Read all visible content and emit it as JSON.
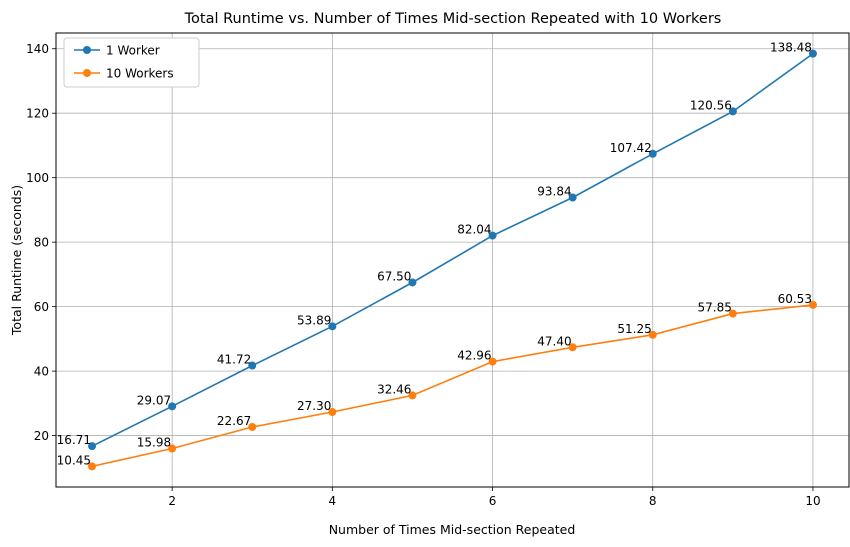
{
  "chart_data": {
    "type": "line",
    "title": "Total Runtime vs. Number of Times Mid-section Repeated with 10 Workers",
    "xlabel": "Number of Times Mid-section Repeated",
    "ylabel": "Total Runtime (seconds)",
    "xlim": [
      0.55,
      10.45
    ],
    "ylim": [
      4.05,
      144.88
    ],
    "xticks": [
      2,
      4,
      6,
      8,
      10
    ],
    "yticks": [
      20,
      40,
      60,
      80,
      100,
      120,
      140
    ],
    "grid": true,
    "legend_position": "top-left",
    "x": [
      1,
      2,
      3,
      4,
      5,
      6,
      7,
      8,
      9,
      10
    ],
    "series": [
      {
        "name": "1 Worker",
        "color": "#1f77b4",
        "values": [
          16.71,
          29.07,
          41.72,
          53.89,
          67.5,
          82.04,
          93.84,
          107.42,
          120.56,
          138.48
        ],
        "labels": [
          "16.71",
          "29.07",
          "41.72",
          "53.89",
          "67.50",
          "82.04",
          "93.84",
          "107.42",
          "120.56",
          "138.48"
        ]
      },
      {
        "name": "10 Workers",
        "color": "#ff7f0e",
        "values": [
          10.45,
          15.98,
          22.67,
          27.3,
          32.46,
          42.96,
          47.4,
          51.25,
          57.85,
          60.53
        ],
        "labels": [
          "10.45",
          "15.98",
          "22.67",
          "27.30",
          "32.46",
          "42.96",
          "47.40",
          "51.25",
          "57.85",
          "60.53"
        ]
      }
    ]
  }
}
